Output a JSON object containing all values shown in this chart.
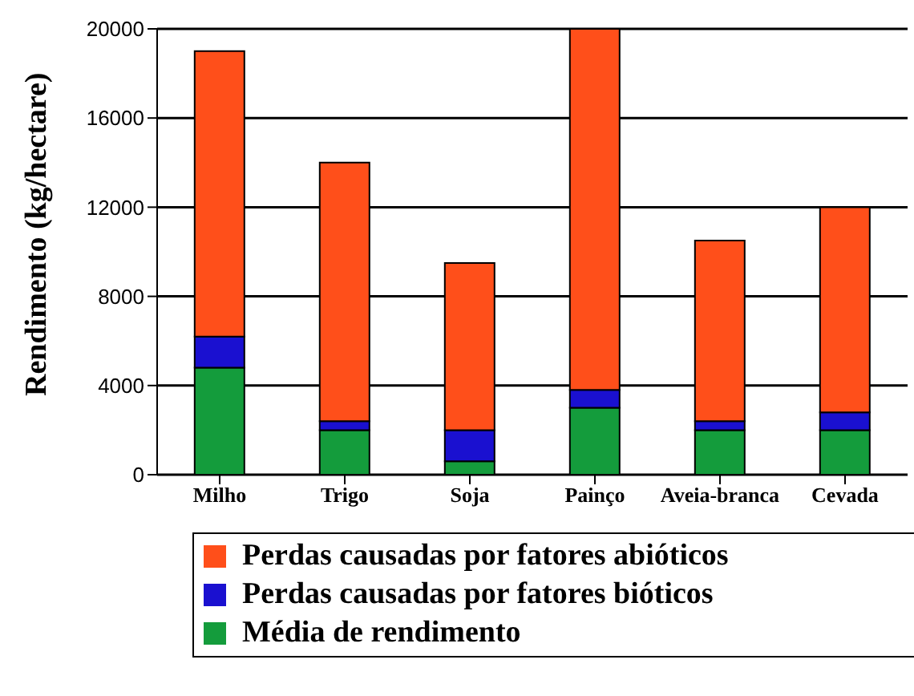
{
  "chart_data": {
    "type": "bar",
    "stacked": true,
    "ylabel": "Rendimento (kg/hectare)",
    "categories": [
      "Milho",
      "Trigo",
      "Soja",
      "Painço",
      "Aveia-branca",
      "Cevada"
    ],
    "series": [
      {
        "name": "Média de rendimento",
        "color": "#149c3c",
        "values": [
          4800,
          2000,
          600,
          3000,
          2000,
          2000
        ]
      },
      {
        "name": "Perdas causadas por fatores bióticos",
        "color": "#1a10d0",
        "values": [
          1400,
          400,
          1400,
          800,
          400,
          800
        ]
      },
      {
        "name": "Perdas causadas por fatores abióticos",
        "color": "#ff4f1a",
        "values": [
          12800,
          11600,
          7500,
          16200,
          8100,
          9200
        ]
      }
    ],
    "ylim": [
      0,
      20000
    ],
    "yticks": [
      0,
      4000,
      8000,
      12000,
      16000,
      20000
    ],
    "grid": "y",
    "legend": "bottom"
  }
}
